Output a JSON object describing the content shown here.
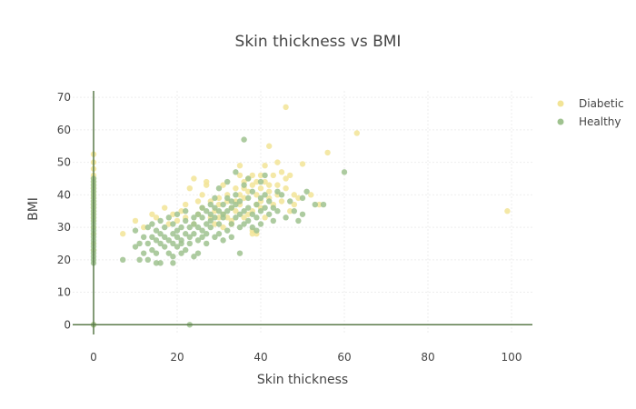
{
  "chart_data": {
    "type": "scatter",
    "title": "Skin thickness vs BMI",
    "xlabel": "Skin thickness",
    "ylabel": "BMI",
    "xlim": [
      -5,
      105
    ],
    "ylim": [
      -3,
      72
    ],
    "xticks": [
      0,
      20,
      40,
      60,
      80,
      100
    ],
    "yticks": [
      0,
      10,
      20,
      30,
      40,
      50,
      60,
      70
    ],
    "grid": true,
    "legend_position": "top-right",
    "series": [
      {
        "name": "Diabetic",
        "color": "#f2e496",
        "points": [
          [
            0,
            23
          ],
          [
            0,
            25
          ],
          [
            0,
            28
          ],
          [
            0,
            30
          ],
          [
            0,
            32
          ],
          [
            0,
            33
          ],
          [
            0,
            34
          ],
          [
            0,
            35
          ],
          [
            0,
            36
          ],
          [
            0,
            37
          ],
          [
            0,
            38
          ],
          [
            0,
            39
          ],
          [
            0,
            40
          ],
          [
            0,
            41
          ],
          [
            0,
            42
          ],
          [
            0,
            43
          ],
          [
            0,
            44
          ],
          [
            0,
            45
          ],
          [
            0,
            46
          ],
          [
            0,
            48
          ],
          [
            0,
            50
          ],
          [
            0,
            52.5
          ],
          [
            0,
            0
          ],
          [
            7,
            28
          ],
          [
            10,
            32
          ],
          [
            12,
            30
          ],
          [
            14,
            34
          ],
          [
            15,
            33
          ],
          [
            17,
            36
          ],
          [
            18,
            31
          ],
          [
            19,
            34
          ],
          [
            20,
            32
          ],
          [
            21,
            35
          ],
          [
            22,
            33
          ],
          [
            22,
            37
          ],
          [
            23,
            42
          ],
          [
            24,
            45
          ],
          [
            24,
            31
          ],
          [
            25,
            38
          ],
          [
            25,
            34
          ],
          [
            26,
            40
          ],
          [
            26,
            36
          ],
          [
            27,
            43
          ],
          [
            27,
            44
          ],
          [
            28,
            33
          ],
          [
            28,
            38
          ],
          [
            29,
            31
          ],
          [
            29,
            35
          ],
          [
            30,
            37
          ],
          [
            30,
            33
          ],
          [
            30,
            39
          ],
          [
            31,
            30
          ],
          [
            31,
            43
          ],
          [
            31,
            34
          ],
          [
            32,
            33
          ],
          [
            32,
            38
          ],
          [
            32,
            40
          ],
          [
            33,
            36
          ],
          [
            33,
            32
          ],
          [
            33,
            31
          ],
          [
            34,
            35
          ],
          [
            34,
            42
          ],
          [
            34,
            38
          ],
          [
            35,
            46
          ],
          [
            35,
            37
          ],
          [
            35,
            40
          ],
          [
            35,
            49
          ],
          [
            36,
            44
          ],
          [
            36,
            33
          ],
          [
            36,
            42
          ],
          [
            36,
            39
          ],
          [
            37,
            45
          ],
          [
            37,
            41
          ],
          [
            37,
            34
          ],
          [
            38,
            46
          ],
          [
            38,
            43
          ],
          [
            38,
            35
          ],
          [
            38,
            29
          ],
          [
            38,
            28
          ],
          [
            39,
            44
          ],
          [
            39,
            37
          ],
          [
            39,
            40
          ],
          [
            39,
            28
          ],
          [
            40,
            42
          ],
          [
            40,
            46
          ],
          [
            40,
            38
          ],
          [
            40,
            36
          ],
          [
            41,
            49
          ],
          [
            41,
            44
          ],
          [
            41,
            33
          ],
          [
            42,
            55
          ],
          [
            42,
            41
          ],
          [
            42,
            39
          ],
          [
            42,
            43
          ],
          [
            43,
            37
          ],
          [
            43,
            46
          ],
          [
            44,
            50
          ],
          [
            44,
            43
          ],
          [
            44,
            40
          ],
          [
            45,
            47
          ],
          [
            45,
            38
          ],
          [
            46,
            67
          ],
          [
            46,
            42
          ],
          [
            46,
            45
          ],
          [
            47,
            46
          ],
          [
            47,
            35
          ],
          [
            48,
            37
          ],
          [
            48,
            40
          ],
          [
            49,
            39
          ],
          [
            50,
            49.5
          ],
          [
            52,
            40
          ],
          [
            54,
            37
          ],
          [
            56,
            53
          ],
          [
            63,
            59
          ],
          [
            99,
            35
          ]
        ]
      },
      {
        "name": "Healthy",
        "color": "#9fc28f",
        "points": [
          [
            0,
            0
          ],
          [
            0,
            19
          ],
          [
            0,
            20
          ],
          [
            0,
            21
          ],
          [
            0,
            22
          ],
          [
            0,
            23
          ],
          [
            0,
            24
          ],
          [
            0,
            25
          ],
          [
            0,
            26
          ],
          [
            0,
            27
          ],
          [
            0,
            28
          ],
          [
            0,
            29
          ],
          [
            0,
            30
          ],
          [
            0,
            31
          ],
          [
            0,
            32
          ],
          [
            0,
            33
          ],
          [
            0,
            34
          ],
          [
            0,
            35
          ],
          [
            0,
            36
          ],
          [
            0,
            37
          ],
          [
            0,
            38
          ],
          [
            0,
            39
          ],
          [
            0,
            40
          ],
          [
            0,
            41
          ],
          [
            0,
            42
          ],
          [
            0,
            43
          ],
          [
            0,
            44
          ],
          [
            0,
            45
          ],
          [
            7,
            20
          ],
          [
            10,
            24
          ],
          [
            10,
            29
          ],
          [
            11,
            25
          ],
          [
            11,
            20
          ],
          [
            12,
            27
          ],
          [
            12,
            22
          ],
          [
            13,
            30
          ],
          [
            13,
            25
          ],
          [
            13,
            20
          ],
          [
            14,
            27
          ],
          [
            14,
            23
          ],
          [
            14,
            31
          ],
          [
            15,
            29
          ],
          [
            15,
            22
          ],
          [
            15,
            26
          ],
          [
            15,
            19
          ],
          [
            16,
            25
          ],
          [
            16,
            28
          ],
          [
            16,
            32
          ],
          [
            16,
            19
          ],
          [
            17,
            24
          ],
          [
            17,
            27
          ],
          [
            17,
            30
          ],
          [
            18,
            22
          ],
          [
            18,
            26
          ],
          [
            18,
            33
          ],
          [
            19,
            21
          ],
          [
            19,
            25
          ],
          [
            19,
            28
          ],
          [
            19,
            31
          ],
          [
            19,
            19
          ],
          [
            20,
            24
          ],
          [
            20,
            27
          ],
          [
            20,
            29
          ],
          [
            20,
            34
          ],
          [
            21,
            22
          ],
          [
            21,
            26
          ],
          [
            21,
            30
          ],
          [
            21,
            25
          ],
          [
            22,
            28
          ],
          [
            22,
            32
          ],
          [
            22,
            23
          ],
          [
            22,
            35
          ],
          [
            23,
            27
          ],
          [
            23,
            30
          ],
          [
            23,
            25
          ],
          [
            23,
            0
          ],
          [
            24,
            31
          ],
          [
            24,
            28
          ],
          [
            24,
            33
          ],
          [
            24,
            21
          ],
          [
            25,
            26
          ],
          [
            25,
            30
          ],
          [
            25,
            34
          ],
          [
            25,
            22
          ],
          [
            26,
            29
          ],
          [
            26,
            33
          ],
          [
            26,
            36
          ],
          [
            26,
            27
          ],
          [
            27,
            31
          ],
          [
            27,
            35
          ],
          [
            27,
            25
          ],
          [
            27,
            28
          ],
          [
            28,
            32
          ],
          [
            28,
            37
          ],
          [
            28,
            34
          ],
          [
            28,
            30
          ],
          [
            29,
            27
          ],
          [
            29,
            33
          ],
          [
            29,
            36
          ],
          [
            29,
            39
          ],
          [
            30,
            31
          ],
          [
            30,
            35
          ],
          [
            30,
            28
          ],
          [
            30,
            42
          ],
          [
            31,
            34
          ],
          [
            31,
            37
          ],
          [
            31,
            26
          ],
          [
            31,
            33
          ],
          [
            32,
            29
          ],
          [
            32,
            35
          ],
          [
            32,
            39
          ],
          [
            32,
            44
          ],
          [
            33,
            31
          ],
          [
            33,
            36
          ],
          [
            33,
            27
          ],
          [
            33,
            38
          ],
          [
            34,
            33
          ],
          [
            34,
            37
          ],
          [
            34,
            40
          ],
          [
            34,
            47
          ],
          [
            35,
            30
          ],
          [
            35,
            34
          ],
          [
            35,
            22
          ],
          [
            35,
            38
          ],
          [
            36,
            31
          ],
          [
            36,
            35
          ],
          [
            36,
            57
          ],
          [
            36,
            43
          ],
          [
            37,
            32
          ],
          [
            37,
            39
          ],
          [
            37,
            36
          ],
          [
            37,
            45
          ],
          [
            38,
            30
          ],
          [
            38,
            34
          ],
          [
            38,
            41
          ],
          [
            39,
            33
          ],
          [
            39,
            37
          ],
          [
            39,
            29
          ],
          [
            40,
            35
          ],
          [
            40,
            39
          ],
          [
            40,
            44
          ],
          [
            40,
            31
          ],
          [
            41,
            36
          ],
          [
            41,
            40
          ],
          [
            41,
            46
          ],
          [
            42,
            34
          ],
          [
            42,
            38
          ],
          [
            43,
            32
          ],
          [
            43,
            36
          ],
          [
            44,
            35
          ],
          [
            44,
            41
          ],
          [
            45,
            40
          ],
          [
            46,
            33
          ],
          [
            47,
            38
          ],
          [
            48,
            35
          ],
          [
            49,
            32
          ],
          [
            50,
            39
          ],
          [
            50,
            34
          ],
          [
            51,
            41
          ],
          [
            53,
            37
          ],
          [
            55,
            37
          ],
          [
            60,
            47
          ]
        ]
      }
    ]
  }
}
